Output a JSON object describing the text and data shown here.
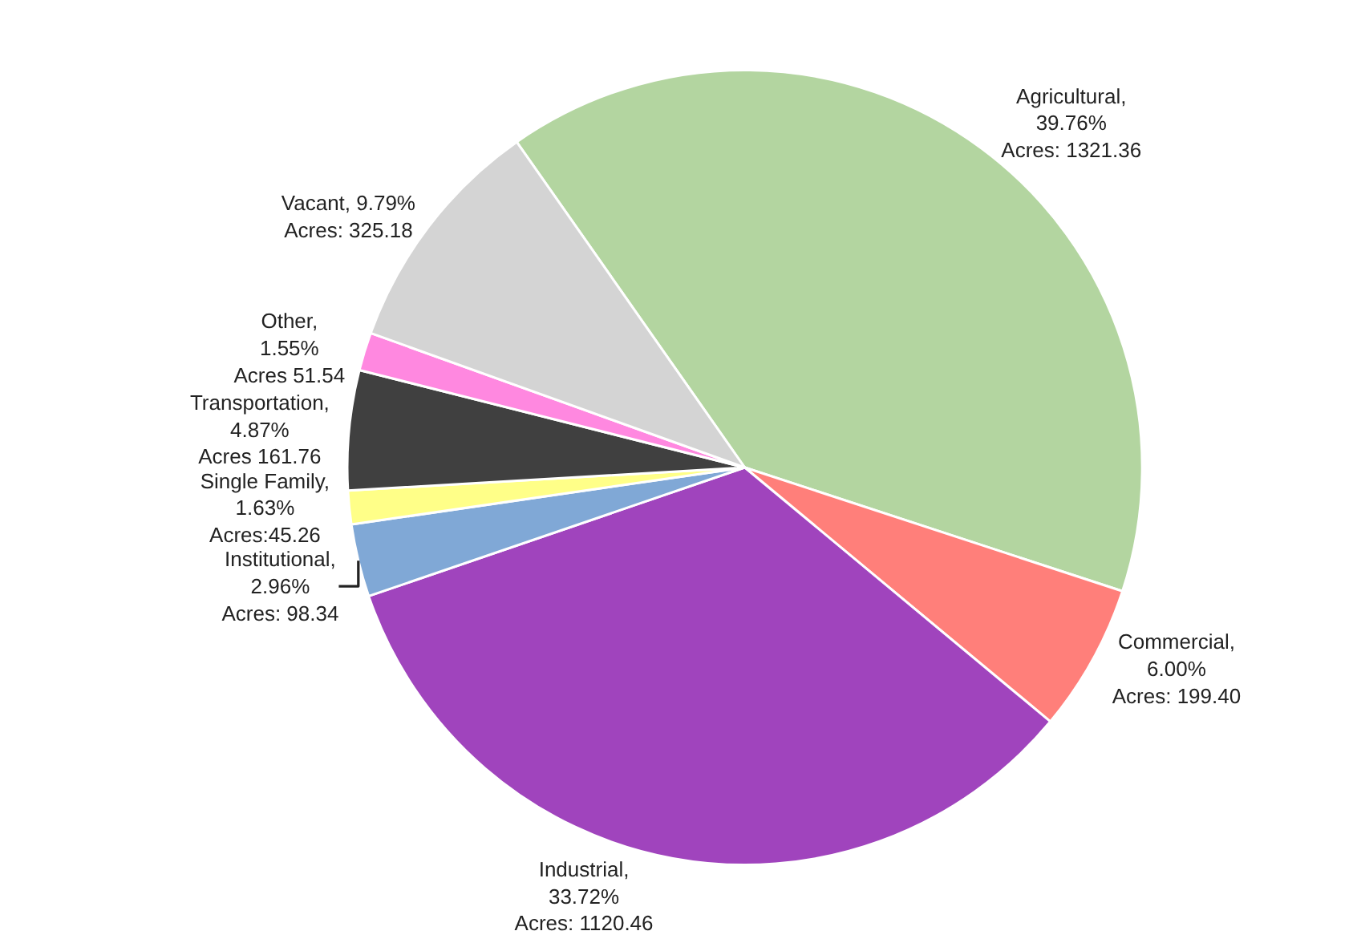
{
  "chart_data": {
    "type": "pie",
    "categories": [
      "Agricultural",
      "Commercial",
      "Industrial",
      "Institutional",
      "Single Family",
      "Transportation",
      "Other",
      "Vacant"
    ],
    "values": [
      1321.36,
      199.4,
      1120.46,
      98.34,
      45.26,
      161.76,
      51.54,
      325.18
    ],
    "colors": [
      "#b3d5a0",
      "#ff7f7a",
      "#a044bd",
      "#80a8d6",
      "#ffff88",
      "#404040",
      "#ff88e0",
      "#d4d4d4"
    ],
    "value_labels": [
      ",\n39.76%\nAcres: 1321.36",
      ",\n6.00%\nAcres: 199.40",
      ",\n33.72%\nAcres: 1120.46",
      ",\n2.96%\nAcres: 98.34",
      ",\n1.63%\nAcres:45.26",
      ",\n4.87%\nAcres 161.76",
      ",\n1.55%\nAcres 51.54",
      ", 9.79%\nAcres: 325.18"
    ]
  }
}
